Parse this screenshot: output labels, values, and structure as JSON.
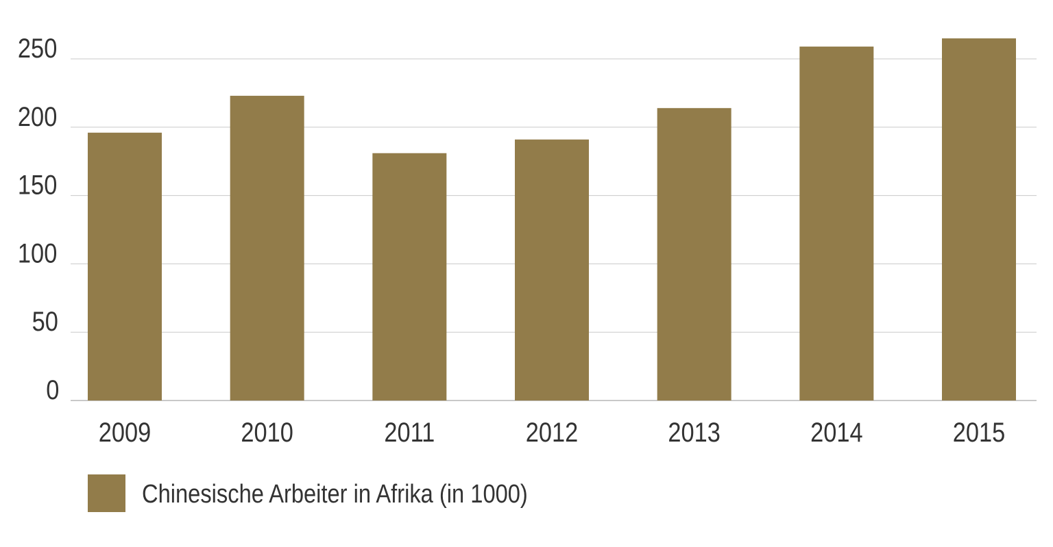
{
  "chart_data": {
    "type": "bar",
    "categories": [
      "2009",
      "2010",
      "2011",
      "2012",
      "2013",
      "2014",
      "2015"
    ],
    "series": [
      {
        "name": "Chinesische Arbeiter in Afrika (in 1000)",
        "values": [
          196,
          223,
          181,
          191,
          214,
          259,
          265
        ],
        "color": "#927c4a"
      }
    ],
    "yticks": [
      0,
      50,
      100,
      150,
      200,
      250
    ],
    "ylim": [
      0,
      250
    ],
    "grid": true,
    "grid_color": "#c8c8c8",
    "legend_position": "bottom-left",
    "title": "",
    "xlabel": "",
    "ylabel": ""
  }
}
